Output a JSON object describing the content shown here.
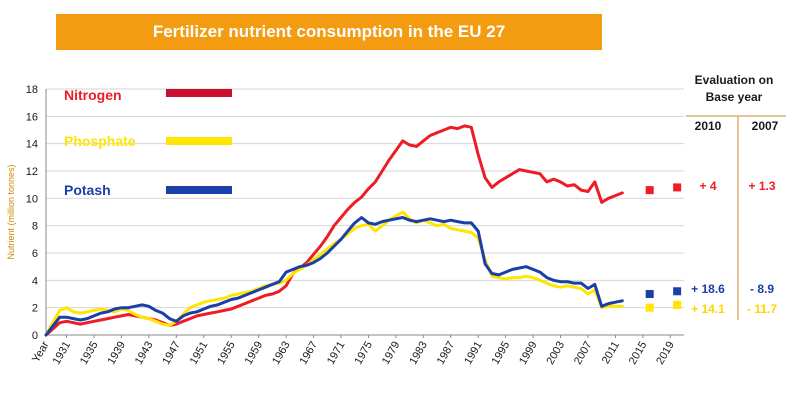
{
  "chart_data": {
    "type": "line",
    "title": "Fertilizer nutrient consumption in the EU 27",
    "ylabel": "Nutrient (million tonnes)",
    "xlabel": "Year",
    "ylim": [
      0,
      18
    ],
    "yticks": [
      0,
      2,
      4,
      6,
      8,
      10,
      12,
      14,
      16,
      18
    ],
    "xticks": [
      "1931",
      "1935",
      "1939",
      "1943",
      "1947",
      "1951",
      "1955",
      "1959",
      "1963",
      "1967",
      "1971",
      "1975",
      "1979",
      "1983",
      "1987",
      "1991",
      "1995",
      "1999",
      "2003",
      "2007",
      "2011",
      "2015",
      "2019"
    ],
    "grid": true,
    "legend_position": "top-left",
    "series": [
      {
        "name": "Nitrogen",
        "color": "#ee1c25",
        "x": [
          1928,
          1930,
          1931,
          1932,
          1933,
          1934,
          1935,
          1936,
          1937,
          1938,
          1939,
          1940,
          1941,
          1942,
          1943,
          1944,
          1945,
          1946,
          1947,
          1948,
          1949,
          1950,
          1951,
          1952,
          1953,
          1954,
          1955,
          1956,
          1957,
          1958,
          1959,
          1960,
          1961,
          1962,
          1963,
          1964,
          1965,
          1966,
          1967,
          1968,
          1969,
          1970,
          1971,
          1972,
          1973,
          1974,
          1975,
          1976,
          1977,
          1978,
          1979,
          1980,
          1981,
          1982,
          1983,
          1984,
          1985,
          1986,
          1987,
          1988,
          1989,
          1990,
          1991,
          1992,
          1993,
          1994,
          1995,
          1996,
          1997,
          1998,
          1999,
          2000,
          2001,
          2002,
          2003,
          2004,
          2005,
          2006,
          2007,
          2008,
          2009,
          2010,
          2011,
          2012
        ],
        "values": [
          0,
          0.9,
          1.0,
          0.9,
          0.8,
          0.9,
          1.0,
          1.1,
          1.2,
          1.3,
          1.4,
          1.5,
          1.4,
          1.3,
          1.2,
          1.1,
          0.9,
          0.7,
          0.8,
          1.0,
          1.2,
          1.4,
          1.5,
          1.6,
          1.7,
          1.8,
          1.9,
          2.1,
          2.3,
          2.5,
          2.7,
          2.9,
          3.0,
          3.2,
          3.6,
          4.5,
          4.9,
          5.3,
          5.9,
          6.5,
          7.2,
          8.0,
          8.6,
          9.2,
          9.7,
          10.1,
          10.7,
          11.2,
          12.0,
          12.8,
          13.5,
          14.2,
          13.9,
          13.8,
          14.2,
          14.6,
          14.8,
          15.0,
          15.2,
          15.1,
          15.3,
          15.2,
          13.2,
          11.5,
          10.8,
          11.2,
          11.5,
          11.8,
          12.1,
          12.0,
          11.9,
          11.8,
          11.2,
          11.4,
          11.2,
          10.9,
          11.0,
          10.6,
          10.5,
          11.2,
          9.7,
          10.0,
          10.2,
          10.4
        ]
      },
      {
        "name": "Phosphate",
        "color": "#ffe500",
        "x": [
          1928,
          1930,
          1931,
          1932,
          1933,
          1934,
          1935,
          1936,
          1937,
          1938,
          1939,
          1940,
          1941,
          1942,
          1943,
          1944,
          1945,
          1946,
          1947,
          1948,
          1949,
          1950,
          1951,
          1952,
          1953,
          1954,
          1955,
          1956,
          1957,
          1958,
          1959,
          1960,
          1961,
          1962,
          1963,
          1964,
          1965,
          1966,
          1967,
          1968,
          1969,
          1970,
          1971,
          1972,
          1973,
          1974,
          1975,
          1976,
          1977,
          1978,
          1979,
          1980,
          1981,
          1982,
          1983,
          1984,
          1985,
          1986,
          1987,
          1988,
          1989,
          1990,
          1991,
          1992,
          1993,
          1994,
          1995,
          1996,
          1997,
          1998,
          1999,
          2000,
          2001,
          2002,
          2003,
          2004,
          2005,
          2006,
          2007,
          2008,
          2009,
          2010,
          2011,
          2012
        ],
        "values": [
          0,
          1.8,
          2.0,
          1.7,
          1.6,
          1.7,
          1.8,
          1.9,
          1.8,
          1.7,
          1.9,
          1.8,
          1.5,
          1.3,
          1.2,
          1.0,
          0.8,
          0.7,
          1.0,
          1.5,
          2.0,
          2.2,
          2.4,
          2.5,
          2.6,
          2.7,
          2.9,
          3.0,
          3.1,
          3.2,
          3.4,
          3.6,
          3.7,
          3.8,
          4.0,
          4.5,
          4.8,
          5.1,
          5.5,
          5.9,
          6.3,
          6.7,
          7.0,
          7.4,
          7.8,
          8.0,
          8.1,
          7.6,
          8.0,
          8.4,
          8.7,
          9.0,
          8.5,
          8.2,
          8.4,
          8.2,
          8.0,
          8.1,
          7.8,
          7.7,
          7.6,
          7.5,
          7.1,
          5.5,
          4.3,
          4.2,
          4.1,
          4.2,
          4.2,
          4.3,
          4.2,
          4.0,
          3.8,
          3.6,
          3.5,
          3.6,
          3.5,
          3.4,
          3.0,
          3.3,
          2.0,
          2.1,
          2.1,
          2.1
        ]
      },
      {
        "name": "Potash",
        "color": "#1a3fa8",
        "x": [
          1928,
          1930,
          1931,
          1932,
          1933,
          1934,
          1935,
          1936,
          1937,
          1938,
          1939,
          1940,
          1941,
          1942,
          1943,
          1944,
          1945,
          1946,
          1947,
          1948,
          1949,
          1950,
          1951,
          1952,
          1953,
          1954,
          1955,
          1956,
          1957,
          1958,
          1959,
          1960,
          1961,
          1962,
          1963,
          1964,
          1965,
          1966,
          1967,
          1968,
          1969,
          1970,
          1971,
          1972,
          1973,
          1974,
          1975,
          1976,
          1977,
          1978,
          1979,
          1980,
          1981,
          1982,
          1983,
          1984,
          1985,
          1986,
          1987,
          1988,
          1989,
          1990,
          1991,
          1992,
          1993,
          1994,
          1995,
          1996,
          1997,
          1998,
          1999,
          2000,
          2001,
          2002,
          2003,
          2004,
          2005,
          2006,
          2007,
          2008,
          2009,
          2010,
          2011,
          2012
        ],
        "values": [
          0,
          1.3,
          1.3,
          1.2,
          1.1,
          1.2,
          1.4,
          1.6,
          1.7,
          1.9,
          2.0,
          2.0,
          2.1,
          2.2,
          2.1,
          1.8,
          1.6,
          1.2,
          1.0,
          1.4,
          1.6,
          1.7,
          1.9,
          2.1,
          2.2,
          2.4,
          2.6,
          2.7,
          2.9,
          3.1,
          3.3,
          3.5,
          3.7,
          3.9,
          4.6,
          4.8,
          5.0,
          5.1,
          5.3,
          5.6,
          6.0,
          6.5,
          7.0,
          7.6,
          8.2,
          8.6,
          8.2,
          8.1,
          8.3,
          8.4,
          8.5,
          8.6,
          8.4,
          8.3,
          8.4,
          8.5,
          8.4,
          8.3,
          8.4,
          8.3,
          8.2,
          8.2,
          7.6,
          5.2,
          4.5,
          4.4,
          4.6,
          4.8,
          4.9,
          5.0,
          4.8,
          4.6,
          4.2,
          4.0,
          3.9,
          3.9,
          3.8,
          3.8,
          3.4,
          3.7,
          2.1,
          2.3,
          2.4,
          2.5
        ]
      }
    ],
    "projections": [
      {
        "series": "Nitrogen",
        "x": [
          2016,
          2020
        ],
        "values": [
          10.6,
          10.8
        ]
      },
      {
        "series": "Potash",
        "x": [
          2016,
          2020
        ],
        "values": [
          3.0,
          3.2
        ]
      },
      {
        "series": "Phosphate",
        "x": [
          2016,
          2020
        ],
        "values": [
          2.0,
          2.2
        ]
      }
    ],
    "evaluation": {
      "header": [
        "Evaluation  on",
        "Base year"
      ],
      "columns": [
        "2010",
        "2007"
      ],
      "rows": [
        {
          "series": "Nitrogen",
          "color": "#ee1c25",
          "v2010": "+ 4",
          "v2007": "+ 1.3"
        },
        {
          "series": "Potash",
          "color": "#1a3fa8",
          "v2010": "+ 18.6",
          "v2007": "- 8.9"
        },
        {
          "series": "Phosphate",
          "color": "#ffd400",
          "v2010": "+ 14.1",
          "v2007": "- 11.7"
        }
      ]
    }
  }
}
